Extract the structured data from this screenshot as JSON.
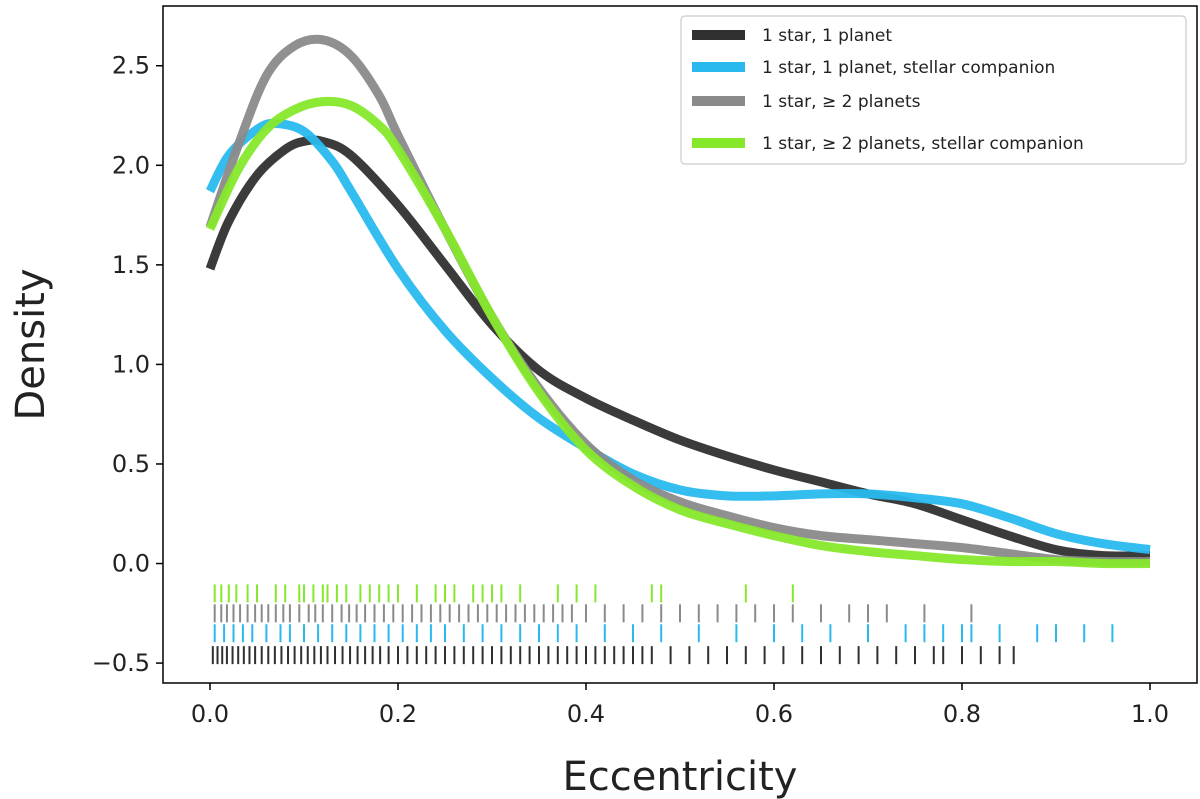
{
  "chart_data": {
    "type": "line",
    "title": "",
    "xlabel": "Eccentricity",
    "ylabel": "Density",
    "xlim": [
      -0.05,
      1.05
    ],
    "ylim": [
      -0.6,
      2.8
    ],
    "xticks": [
      0.0,
      0.2,
      0.4,
      0.6,
      0.8,
      1.0
    ],
    "xtick_labels": [
      "0.0",
      "0.2",
      "0.4",
      "0.6",
      "0.8",
      "1.0"
    ],
    "yticks": [
      -0.5,
      0.0,
      0.5,
      1.0,
      1.5,
      2.0,
      2.5
    ],
    "ytick_labels": [
      "−0.5",
      "0.0",
      "0.5",
      "1.0",
      "1.5",
      "2.0",
      "2.5"
    ],
    "grid": false,
    "legend_position": "top-right",
    "series": [
      {
        "name": "1 star, 1 planet",
        "color": "#303030",
        "x": [
          0.0,
          0.02,
          0.05,
          0.08,
          0.1,
          0.12,
          0.15,
          0.2,
          0.25,
          0.3,
          0.35,
          0.4,
          0.45,
          0.5,
          0.55,
          0.6,
          0.65,
          0.7,
          0.75,
          0.8,
          0.85,
          0.9,
          0.95,
          1.0
        ],
        "y": [
          1.48,
          1.72,
          1.95,
          2.08,
          2.12,
          2.12,
          2.05,
          1.8,
          1.5,
          1.2,
          0.97,
          0.83,
          0.72,
          0.62,
          0.54,
          0.47,
          0.41,
          0.35,
          0.3,
          0.22,
          0.14,
          0.07,
          0.04,
          0.04
        ]
      },
      {
        "name": "1 star, 1 planet, stellar companion",
        "color": "#29b9ee",
        "x": [
          0.0,
          0.02,
          0.05,
          0.07,
          0.1,
          0.13,
          0.15,
          0.2,
          0.25,
          0.3,
          0.35,
          0.4,
          0.45,
          0.5,
          0.55,
          0.6,
          0.65,
          0.7,
          0.75,
          0.8,
          0.85,
          0.9,
          0.95,
          1.0
        ],
        "y": [
          1.87,
          2.05,
          2.18,
          2.21,
          2.17,
          2.02,
          1.87,
          1.48,
          1.17,
          0.93,
          0.73,
          0.58,
          0.45,
          0.37,
          0.34,
          0.34,
          0.35,
          0.35,
          0.33,
          0.3,
          0.23,
          0.15,
          0.1,
          0.07
        ]
      },
      {
        "name": "1 star,  ≥ 2 planets",
        "color": "#8a8a8a",
        "x": [
          0.0,
          0.03,
          0.06,
          0.09,
          0.12,
          0.15,
          0.18,
          0.2,
          0.25,
          0.3,
          0.35,
          0.4,
          0.45,
          0.5,
          0.55,
          0.6,
          0.65,
          0.7,
          0.75,
          0.8,
          0.85,
          0.9,
          0.95,
          1.0
        ],
        "y": [
          1.69,
          2.1,
          2.45,
          2.6,
          2.63,
          2.55,
          2.35,
          2.15,
          1.68,
          1.24,
          0.88,
          0.6,
          0.42,
          0.31,
          0.24,
          0.18,
          0.14,
          0.12,
          0.1,
          0.08,
          0.05,
          0.02,
          0.01,
          0.01
        ]
      },
      {
        "name": "1 star,  ≥ 2 planets, stellar companion",
        "color": "#86e82a",
        "x": [
          0.0,
          0.03,
          0.06,
          0.09,
          0.12,
          0.15,
          0.18,
          0.2,
          0.25,
          0.3,
          0.35,
          0.4,
          0.45,
          0.5,
          0.55,
          0.6,
          0.65,
          0.7,
          0.75,
          0.8,
          0.85,
          0.9,
          0.95,
          1.0
        ],
        "y": [
          1.68,
          1.98,
          2.18,
          2.28,
          2.32,
          2.3,
          2.2,
          2.08,
          1.68,
          1.24,
          0.86,
          0.57,
          0.39,
          0.27,
          0.2,
          0.14,
          0.09,
          0.06,
          0.04,
          0.02,
          0.01,
          0.01,
          0.0,
          0.0
        ]
      }
    ],
    "rug": [
      {
        "series": "1 star,  ≥ 2 planets, stellar companion",
        "y": -0.15,
        "values": [
          0.005,
          0.012,
          0.02,
          0.028,
          0.04,
          0.05,
          0.07,
          0.08,
          0.095,
          0.1,
          0.11,
          0.12,
          0.125,
          0.135,
          0.145,
          0.16,
          0.17,
          0.18,
          0.19,
          0.2,
          0.22,
          0.24,
          0.25,
          0.26,
          0.28,
          0.29,
          0.3,
          0.31,
          0.33,
          0.37,
          0.39,
          0.41,
          0.47,
          0.48,
          0.57,
          0.62
        ]
      },
      {
        "series": "1 star,  ≥ 2 planets",
        "y": -0.25,
        "values": [
          0.005,
          0.012,
          0.018,
          0.025,
          0.032,
          0.04,
          0.048,
          0.055,
          0.062,
          0.07,
          0.078,
          0.085,
          0.095,
          0.105,
          0.112,
          0.12,
          0.13,
          0.14,
          0.148,
          0.156,
          0.165,
          0.175,
          0.185,
          0.195,
          0.205,
          0.215,
          0.225,
          0.235,
          0.245,
          0.255,
          0.265,
          0.275,
          0.285,
          0.295,
          0.305,
          0.315,
          0.325,
          0.335,
          0.345,
          0.355,
          0.365,
          0.375,
          0.385,
          0.4,
          0.42,
          0.44,
          0.46,
          0.48,
          0.5,
          0.52,
          0.54,
          0.56,
          0.58,
          0.6,
          0.62,
          0.65,
          0.68,
          0.7,
          0.72,
          0.76,
          0.81
        ]
      },
      {
        "series": "1 star, 1 planet, stellar companion",
        "y": -0.35,
        "values": [
          0.005,
          0.015,
          0.025,
          0.035,
          0.045,
          0.06,
          0.075,
          0.085,
          0.1,
          0.115,
          0.13,
          0.145,
          0.16,
          0.175,
          0.19,
          0.205,
          0.22,
          0.235,
          0.25,
          0.27,
          0.29,
          0.31,
          0.33,
          0.35,
          0.37,
          0.39,
          0.42,
          0.45,
          0.48,
          0.52,
          0.56,
          0.6,
          0.63,
          0.66,
          0.7,
          0.74,
          0.76,
          0.78,
          0.8,
          0.81,
          0.84,
          0.88,
          0.9,
          0.93,
          0.96
        ]
      },
      {
        "series": "1 star, 1 planet",
        "y": -0.46,
        "values": [
          0.003,
          0.008,
          0.013,
          0.018,
          0.024,
          0.03,
          0.036,
          0.042,
          0.048,
          0.055,
          0.062,
          0.069,
          0.076,
          0.083,
          0.09,
          0.097,
          0.104,
          0.111,
          0.118,
          0.125,
          0.133,
          0.141,
          0.149,
          0.157,
          0.165,
          0.173,
          0.181,
          0.19,
          0.2,
          0.21,
          0.22,
          0.23,
          0.24,
          0.25,
          0.26,
          0.27,
          0.28,
          0.29,
          0.3,
          0.31,
          0.32,
          0.33,
          0.34,
          0.35,
          0.36,
          0.37,
          0.38,
          0.39,
          0.4,
          0.41,
          0.42,
          0.43,
          0.44,
          0.45,
          0.46,
          0.47,
          0.49,
          0.51,
          0.53,
          0.55,
          0.57,
          0.59,
          0.61,
          0.63,
          0.65,
          0.67,
          0.69,
          0.71,
          0.73,
          0.75,
          0.77,
          0.78,
          0.8,
          0.82,
          0.84,
          0.855
        ]
      }
    ]
  }
}
